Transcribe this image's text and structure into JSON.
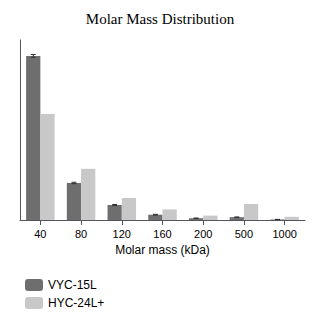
{
  "chart_data": {
    "type": "bar",
    "title": "Molar Mass Distribution",
    "x_label": "Molar mass (kDa)",
    "categories": [
      "40",
      "80",
      "120",
      "160",
      "200",
      "500",
      "1000"
    ],
    "series": [
      {
        "name": "VYC-15L",
        "color": "#6e6e6e",
        "values": [
          0.93,
          0.21,
          0.085,
          0.03,
          0.01,
          0.016,
          0.003
        ],
        "errors": [
          0.008,
          0.004,
          0.003,
          0.002,
          0.001,
          0.001,
          0.0005
        ]
      },
      {
        "name": "HYC-24L+",
        "color": "#c8c8c8",
        "values": [
          0.6,
          0.29,
          0.125,
          0.06,
          0.025,
          0.09,
          0.018
        ]
      }
    ],
    "ylim": [
      0,
      1.02
    ],
    "tick_labels": "x",
    "grid": false,
    "legend": "lower left"
  }
}
